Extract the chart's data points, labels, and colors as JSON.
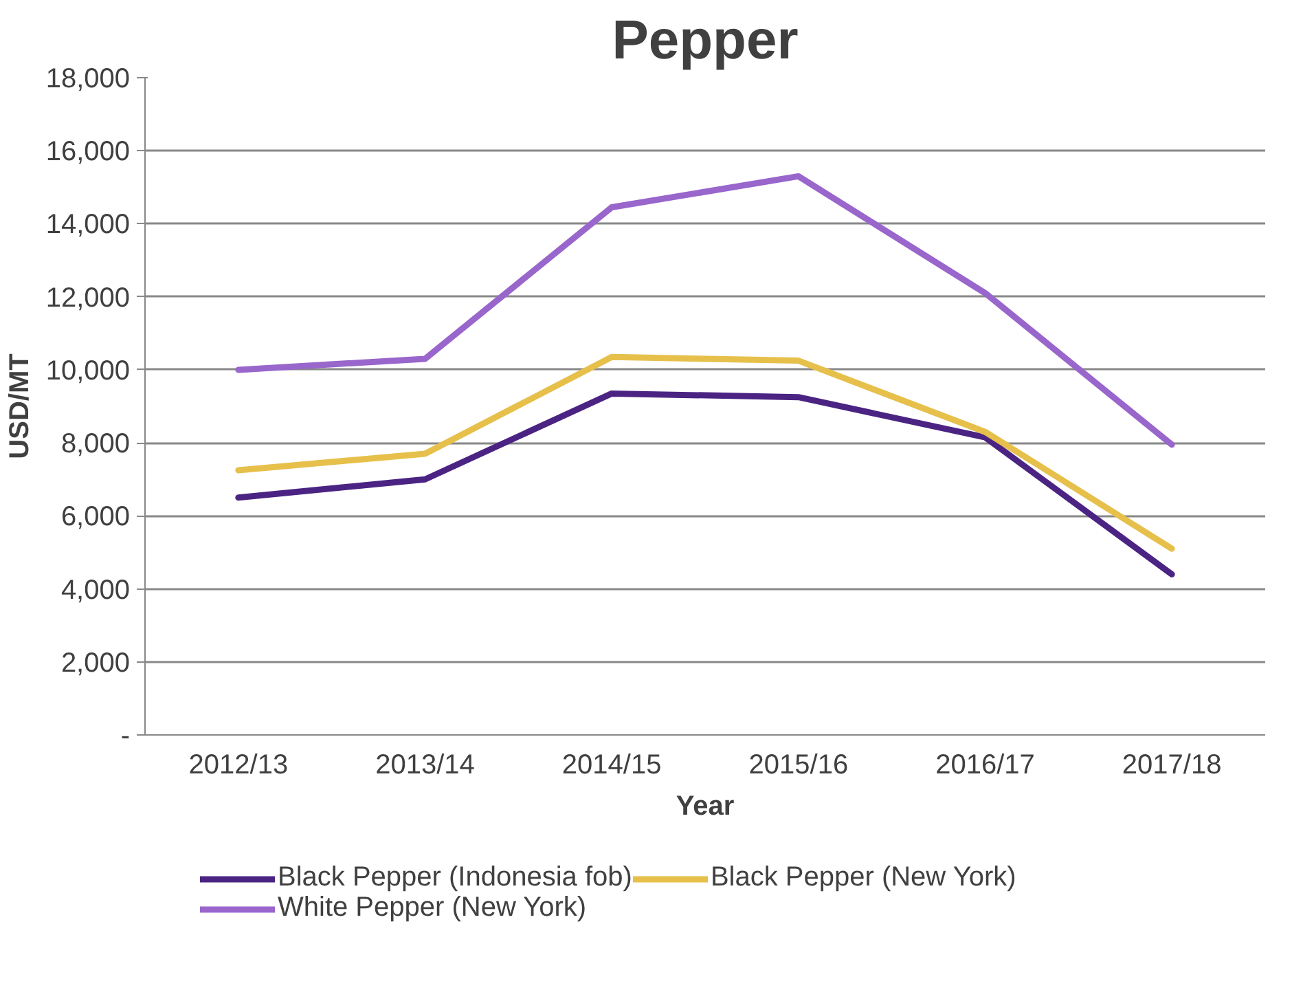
{
  "chart_data": {
    "type": "line",
    "title": "Pepper",
    "xlabel": "Year",
    "ylabel": "USD/MT",
    "categories": [
      "2012/13",
      "2013/14",
      "2014/15",
      "2015/16",
      "2016/17",
      "2017/18"
    ],
    "series": [
      {
        "name": "Black Pepper (Indonesia fob)",
        "color": "#4b2483",
        "values": [
          6500,
          7000,
          9350,
          9250,
          8150,
          4400
        ]
      },
      {
        "name": "Black Pepper (New York)",
        "color": "#e6c04a",
        "values": [
          7250,
          7700,
          10350,
          10250,
          8300,
          5100
        ]
      },
      {
        "name": "White Pepper (New York)",
        "color": "#9966cc",
        "values": [
          10000,
          10300,
          14450,
          15300,
          12100,
          7950
        ]
      }
    ],
    "ylim": [
      0,
      18000
    ],
    "yticks": [
      {
        "value": 0,
        "label": "-"
      },
      {
        "value": 2000,
        "label": "2,000"
      },
      {
        "value": 4000,
        "label": "4,000"
      },
      {
        "value": 6000,
        "label": "6,000"
      },
      {
        "value": 8000,
        "label": "8,000"
      },
      {
        "value": 10000,
        "label": "10,000"
      },
      {
        "value": 12000,
        "label": "12,000"
      },
      {
        "value": 14000,
        "label": "14,000"
      },
      {
        "value": 16000,
        "label": "16,000"
      },
      {
        "value": 18000,
        "label": "18,000"
      }
    ],
    "grid": "y",
    "legend": "bottom",
    "marker": "none",
    "line_style": "solid"
  }
}
